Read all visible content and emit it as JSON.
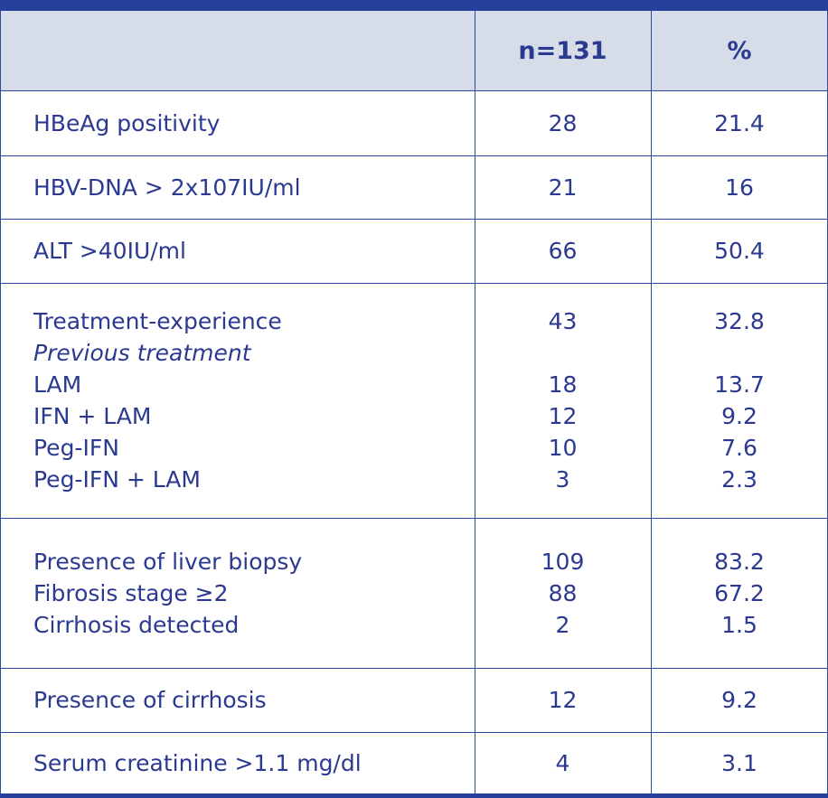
{
  "header": {
    "columns": [
      "n=131",
      "%"
    ]
  },
  "rows": [
    {
      "lines": [
        {
          "label": "HBeAg positivity",
          "n": 28,
          "pct": 21.4
        }
      ]
    },
    {
      "lines": [
        {
          "label": "HBV-DNA > 2x107IU/ml",
          "n": 21,
          "pct": 16
        }
      ]
    },
    {
      "lines": [
        {
          "label": "ALT >40IU/ml",
          "n": 66,
          "pct": 50.4
        }
      ]
    },
    {
      "lines": [
        {
          "label": "Treatment-experience",
          "n": 43,
          "pct": 32.8
        },
        {
          "label": "Previous treatment",
          "italic": true
        },
        {
          "label": "LAM",
          "n": 18,
          "pct": 13.7
        },
        {
          "label": "IFN + LAM",
          "n": 12,
          "pct": 9.2
        },
        {
          "label": "Peg-IFN",
          "n": 10,
          "pct": 7.6
        },
        {
          "label": "Peg-IFN + LAM",
          "n": 3,
          "pct": 2.3
        }
      ]
    },
    {
      "lines": [
        {
          "label": "Presence of liver biopsy",
          "n": 109,
          "pct": 83.2
        },
        {
          "label": "Fibrosis stage ≥2",
          "n": 88,
          "pct": 67.2
        },
        {
          "label": "Cirrhosis detected",
          "n": 2,
          "pct": 1.5
        }
      ]
    },
    {
      "lines": [
        {
          "label": "Presence of cirrhosis",
          "n": 12,
          "pct": 9.2
        }
      ]
    },
    {
      "lines": [
        {
          "label": "Serum creatinine >1.1 mg/dl",
          "n": 4,
          "pct": 3.1
        }
      ]
    }
  ]
}
